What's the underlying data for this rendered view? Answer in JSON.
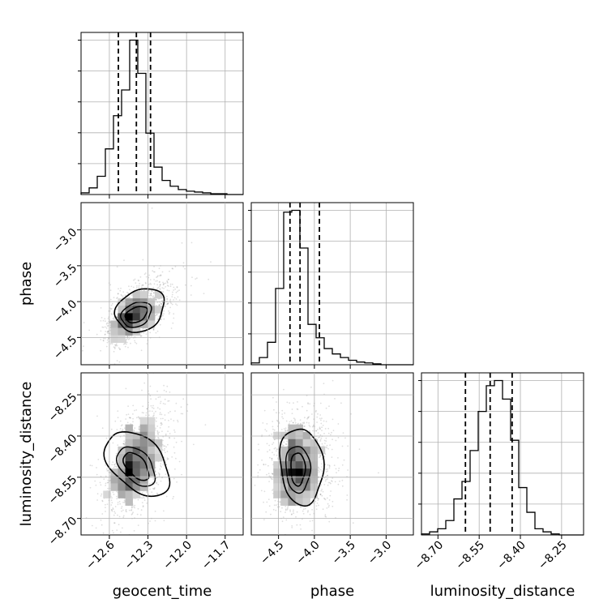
{
  "chart_data": {
    "type": "corner",
    "parameters": [
      "geocent_time",
      "phase",
      "luminosity_distance"
    ],
    "grid": true,
    "quantile_lines": "dashed black at 16th, 50th, 84th percentiles on each 1-D histogram",
    "axes": {
      "geocent_time": {
        "label": "geocent_time",
        "range": [
          -12.82,
          -11.56
        ],
        "ticks": [
          -12.6,
          -12.3,
          -12.0,
          -11.7
        ],
        "tick_labels": [
          "−12.6",
          "−12.3",
          "−12.0",
          "−11.7"
        ]
      },
      "phase": {
        "label": "phase",
        "range": [
          -4.88,
          -2.62
        ],
        "ticks": [
          -4.5,
          -4.0,
          -3.5,
          -3.0
        ],
        "tick_labels": [
          "−4.5",
          "−4.0",
          "−3.5",
          "−3.0"
        ]
      },
      "luminosity_distance": {
        "label": "luminosity_distance",
        "range": [
          -8.76,
          -8.17
        ],
        "ticks": [
          -8.7,
          -8.55,
          -8.4,
          -8.25
        ],
        "tick_labels": [
          "−8.70",
          "−8.55",
          "−8.40",
          "−8.25"
        ]
      }
    },
    "histograms": [
      {
        "param": "geocent_time",
        "bin_edges": [
          -12.82,
          -12.757,
          -12.694,
          -12.631,
          -12.568,
          -12.505,
          -12.442,
          -12.379,
          -12.316,
          -12.253,
          -12.19,
          -12.127,
          -12.064,
          -12.001,
          -11.938,
          -11.875,
          -11.812,
          -11.749,
          -11.686,
          -11.623,
          -11.56
        ],
        "counts": [
          2,
          8,
          22,
          55,
          95,
          126,
          186,
          146,
          74,
          33,
          17,
          10,
          6,
          4,
          3,
          2,
          1,
          1,
          0,
          0
        ],
        "quantiles": [
          -12.53,
          -12.39,
          -12.28
        ]
      },
      {
        "param": "phase",
        "bin_edges": [
          -4.88,
          -4.767,
          -4.654,
          -4.541,
          -4.428,
          -4.315,
          -4.202,
          -4.089,
          -3.976,
          -3.863,
          -3.75,
          -3.637,
          -3.524,
          -3.411,
          -3.298,
          -3.185,
          -3.072,
          -2.959,
          -2.846,
          -2.733,
          -2.62
        ],
        "counts": [
          2,
          8,
          25,
          85,
          170,
          172,
          130,
          45,
          30,
          18,
          12,
          8,
          5,
          3,
          2,
          1,
          0,
          0,
          0,
          0
        ],
        "quantiles": [
          -4.34,
          -4.2,
          -3.93
        ]
      },
      {
        "param": "luminosity_distance",
        "bin_edges": [
          -8.76,
          -8.7305,
          -8.701,
          -8.6715,
          -8.642,
          -8.6125,
          -8.583,
          -8.5535,
          -8.524,
          -8.4945,
          -8.465,
          -8.4355,
          -8.406,
          -8.3765,
          -8.347,
          -8.3175,
          -8.288,
          -8.2585,
          -8.229,
          -8.1995,
          -8.17
        ],
        "counts": [
          1,
          3,
          6,
          14,
          35,
          52,
          82,
          120,
          145,
          150,
          132,
          92,
          46,
          22,
          6,
          3,
          1,
          0,
          0,
          0
        ],
        "quantiles": [
          -8.6,
          -8.51,
          -8.43
        ]
      }
    ],
    "pair_plots": [
      {
        "x": "geocent_time",
        "y": "phase",
        "style": "scatter + 2-D histogram + contours",
        "peak": [
          -12.4,
          -4.18
        ],
        "sigma": [
          0.1,
          0.17
        ],
        "correlation": 0.55,
        "contours": [
          {
            "level": "1-sigma",
            "center": [
              -12.39,
              -4.18
            ],
            "semi_axes": [
              0.09,
              0.1
            ],
            "angle_deg": 25
          },
          {
            "level": "2-sigma",
            "center": [
              -12.36,
              -4.12
            ],
            "semi_axes": [
              0.2,
              0.28
            ],
            "angle_deg": 32
          }
        ]
      },
      {
        "x": "geocent_time",
        "y": "luminosity_distance",
        "style": "scatter + 2-D histogram + contours",
        "peak": [
          -12.4,
          -8.51
        ],
        "sigma": [
          0.1,
          0.075
        ],
        "correlation": 0.5,
        "contours": [
          {
            "level": "1-sigma",
            "center": [
              -12.39,
              -8.51
            ],
            "semi_axes": [
              0.07,
              0.06
            ],
            "angle_deg": 40
          },
          {
            "level": "2-sigma",
            "center": [
              -12.38,
              -8.5
            ],
            "semi_axes": [
              0.19,
              0.14
            ],
            "angle_deg": 45
          }
        ]
      },
      {
        "x": "phase",
        "y": "luminosity_distance",
        "style": "scatter + 2-D histogram + contours",
        "peak": [
          -4.23,
          -8.52
        ],
        "sigma": [
          0.18,
          0.075
        ],
        "correlation": 0.05,
        "contours": [
          {
            "level": "1-sigma",
            "center": [
              -4.23,
              -8.52
            ],
            "semi_axes": [
              0.1,
              0.06
            ],
            "angle_deg": 0
          },
          {
            "level": "2-sigma",
            "center": [
              -4.18,
              -8.51
            ],
            "semi_axes": [
              0.3,
              0.14
            ],
            "angle_deg": 5
          }
        ]
      }
    ]
  }
}
